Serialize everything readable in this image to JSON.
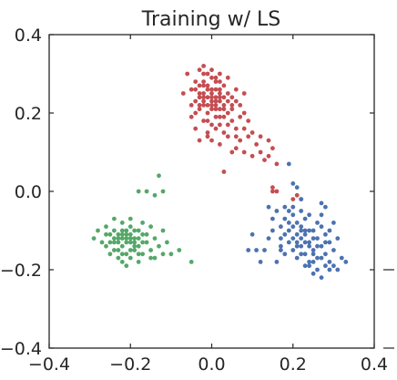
{
  "chart_data": {
    "type": "scatter",
    "title": "Training w/ LS",
    "xlabel": "",
    "ylabel": "",
    "xlim": [
      -0.4,
      0.4
    ],
    "ylim": [
      -0.4,
      0.4
    ],
    "xticks": [
      "−0.4",
      "−0.2",
      "0.0",
      "0.2",
      "0.4"
    ],
    "yticks": [
      "0.4",
      "0.2",
      "0.0",
      "−0.2",
      "−0.4"
    ],
    "grid": false,
    "legend": "none",
    "series": [
      {
        "color": "#c44e52",
        "points": [
          [
            -0.03,
            0.31
          ],
          [
            -0.02,
            0.32
          ],
          [
            -0.01,
            0.3
          ],
          [
            0.0,
            0.29
          ],
          [
            -0.04,
            0.28
          ],
          [
            -0.02,
            0.27
          ],
          [
            0.01,
            0.28
          ],
          [
            0.02,
            0.3
          ],
          [
            -0.05,
            0.26
          ],
          [
            -0.03,
            0.25
          ],
          [
            0.0,
            0.26
          ],
          [
            0.02,
            0.25
          ],
          [
            0.03,
            0.27
          ],
          [
            -0.01,
            0.24
          ],
          [
            0.01,
            0.23
          ],
          [
            -0.04,
            0.23
          ],
          [
            -0.02,
            0.22
          ],
          [
            0.0,
            0.22
          ],
          [
            0.03,
            0.22
          ],
          [
            0.05,
            0.24
          ],
          [
            0.06,
            0.26
          ],
          [
            -0.03,
            0.21
          ],
          [
            -0.01,
            0.2
          ],
          [
            0.01,
            0.21
          ],
          [
            0.04,
            0.2
          ],
          [
            -0.05,
            0.19
          ],
          [
            -0.02,
            0.18
          ],
          [
            0.0,
            0.17
          ],
          [
            0.02,
            0.19
          ],
          [
            0.05,
            0.18
          ],
          [
            0.07,
            0.22
          ],
          [
            0.08,
            0.2
          ],
          [
            -0.04,
            0.16
          ],
          [
            -0.01,
            0.15
          ],
          [
            0.01,
            0.16
          ],
          [
            0.03,
            0.15
          ],
          [
            0.06,
            0.16
          ],
          [
            0.09,
            0.18
          ],
          [
            -0.03,
            0.13
          ],
          [
            0.0,
            0.13
          ],
          [
            0.02,
            0.12
          ],
          [
            0.04,
            0.14
          ],
          [
            0.07,
            0.13
          ],
          [
            0.1,
            0.15
          ],
          [
            0.11,
            0.12
          ],
          [
            -0.02,
            0.24
          ],
          [
            0.0,
            0.25
          ],
          [
            -0.01,
            0.27
          ],
          [
            0.02,
            0.24
          ],
          [
            0.04,
            0.23
          ],
          [
            -0.03,
            0.24
          ],
          [
            0.01,
            0.26
          ],
          [
            -0.02,
            0.23
          ],
          [
            0.0,
            0.23
          ],
          [
            0.01,
            0.24
          ],
          [
            0.03,
            0.24
          ],
          [
            -0.01,
            0.22
          ],
          [
            0.02,
            0.21
          ],
          [
            0.05,
            0.21
          ],
          [
            -0.04,
            0.2
          ],
          [
            0.12,
            0.1
          ],
          [
            0.14,
            0.13
          ],
          [
            0.15,
            0.11
          ],
          [
            0.13,
            0.08
          ],
          [
            0.06,
            0.11
          ],
          [
            0.08,
            0.1
          ],
          [
            0.16,
            0.07
          ],
          [
            0.03,
            0.05
          ],
          [
            0.05,
            0.1
          ],
          [
            0.1,
            0.09
          ],
          [
            0.15,
            0.01
          ],
          [
            0.15,
            0.0
          ],
          [
            0.16,
            0.0
          ],
          [
            0.21,
            -0.01
          ],
          [
            0.22,
            -0.02
          ],
          [
            0.2,
            -0.02
          ],
          [
            -0.06,
            0.3
          ],
          [
            -0.07,
            0.25
          ],
          [
            -0.02,
            0.28
          ],
          [
            0.03,
            0.19
          ],
          [
            0.06,
            0.23
          ],
          [
            0.08,
            0.25
          ],
          [
            -0.01,
            0.18
          ],
          [
            0.04,
            0.17
          ],
          [
            0.07,
            0.19
          ],
          [
            -0.03,
            0.27
          ],
          [
            0.01,
            0.29
          ],
          [
            0.02,
            0.28
          ],
          [
            -0.04,
            0.26
          ],
          [
            0.0,
            0.21
          ],
          [
            0.02,
            0.23
          ],
          [
            -0.02,
            0.25
          ],
          [
            0.01,
            0.22
          ],
          [
            0.03,
            0.21
          ],
          [
            -0.01,
            0.26
          ],
          [
            0.0,
            0.24
          ],
          [
            0.02,
            0.26
          ],
          [
            -0.03,
            0.22
          ],
          [
            0.04,
            0.25
          ],
          [
            0.05,
            0.22
          ],
          [
            0.09,
            0.14
          ],
          [
            0.12,
            0.14
          ],
          [
            0.14,
            0.09
          ],
          [
            0.02,
            0.17
          ],
          [
            -0.02,
            0.3
          ],
          [
            0.0,
            0.31
          ],
          [
            0.04,
            0.29
          ],
          [
            -0.05,
            0.22
          ],
          [
            0.06,
            0.14
          ],
          [
            0.08,
            0.16
          ],
          [
            -0.01,
            0.14
          ],
          [
            0.01,
            0.19
          ]
        ]
      },
      {
        "color": "#4c72b0",
        "points": [
          [
            0.19,
            -0.05
          ],
          [
            0.2,
            -0.06
          ],
          [
            0.22,
            -0.05
          ],
          [
            0.24,
            -0.06
          ],
          [
            0.18,
            -0.07
          ],
          [
            0.21,
            -0.08
          ],
          [
            0.23,
            -0.07
          ],
          [
            0.26,
            -0.08
          ],
          [
            0.17,
            -0.09
          ],
          [
            0.19,
            -0.1
          ],
          [
            0.22,
            -0.09
          ],
          [
            0.25,
            -0.1
          ],
          [
            0.27,
            -0.09
          ],
          [
            0.18,
            -0.11
          ],
          [
            0.2,
            -0.12
          ],
          [
            0.23,
            -0.11
          ],
          [
            0.26,
            -0.12
          ],
          [
            0.28,
            -0.11
          ],
          [
            0.19,
            -0.13
          ],
          [
            0.21,
            -0.14
          ],
          [
            0.24,
            -0.13
          ],
          [
            0.27,
            -0.14
          ],
          [
            0.29,
            -0.13
          ],
          [
            0.2,
            -0.15
          ],
          [
            0.22,
            -0.16
          ],
          [
            0.25,
            -0.15
          ],
          [
            0.28,
            -0.16
          ],
          [
            0.3,
            -0.15
          ],
          [
            0.21,
            -0.17
          ],
          [
            0.24,
            -0.18
          ],
          [
            0.27,
            -0.17
          ],
          [
            0.29,
            -0.18
          ],
          [
            0.23,
            -0.19
          ],
          [
            0.26,
            -0.2
          ],
          [
            0.28,
            -0.19
          ],
          [
            0.25,
            -0.21
          ],
          [
            0.27,
            -0.22
          ],
          [
            0.29,
            -0.2
          ],
          [
            0.15,
            -0.1
          ],
          [
            0.14,
            -0.12
          ],
          [
            0.13,
            -0.15
          ],
          [
            0.11,
            -0.15
          ],
          [
            0.12,
            -0.18
          ],
          [
            0.16,
            -0.18
          ],
          [
            0.17,
            -0.14
          ],
          [
            0.18,
            -0.16
          ],
          [
            0.16,
            -0.05
          ],
          [
            0.15,
            -0.07
          ],
          [
            0.28,
            -0.04
          ],
          [
            0.27,
            -0.06
          ],
          [
            0.3,
            -0.08
          ],
          [
            0.31,
            -0.12
          ],
          [
            0.32,
            -0.17
          ],
          [
            0.33,
            -0.18
          ],
          [
            0.31,
            -0.2
          ],
          [
            0.22,
            -0.12
          ],
          [
            0.23,
            -0.13
          ],
          [
            0.24,
            -0.14
          ],
          [
            0.22,
            -0.14
          ],
          [
            0.23,
            -0.1
          ],
          [
            0.25,
            -0.12
          ],
          [
            0.21,
            -0.11
          ],
          [
            0.24,
            -0.1
          ],
          [
            0.26,
            -0.14
          ],
          [
            0.2,
            -0.09
          ],
          [
            0.22,
            -0.1
          ],
          [
            0.25,
            -0.16
          ],
          [
            0.23,
            -0.16
          ],
          [
            0.21,
            -0.13
          ],
          [
            0.19,
            -0.08
          ],
          [
            0.17,
            -0.12
          ],
          [
            0.29,
            -0.1
          ],
          [
            0.26,
            -0.17
          ],
          [
            0.24,
            -0.19
          ],
          [
            0.28,
            -0.13
          ],
          [
            0.2,
            -0.04
          ],
          [
            0.18,
            -0.04
          ],
          [
            0.09,
            -0.15
          ],
          [
            0.1,
            -0.11
          ],
          [
            0.14,
            -0.04
          ],
          [
            0.19,
            0.07
          ],
          [
            0.2,
            0.02
          ],
          [
            0.21,
            0.01
          ],
          [
            0.22,
            -0.02
          ],
          [
            0.27,
            -0.03
          ],
          [
            0.17,
            -0.15
          ],
          [
            0.3,
            -0.19
          ],
          [
            0.25,
            -0.18
          ]
        ]
      },
      {
        "color": "#55a868",
        "points": [
          [
            -0.13,
            0.04
          ],
          [
            -0.14,
            -0.01
          ],
          [
            -0.12,
            0.0
          ],
          [
            -0.18,
            0.0
          ],
          [
            -0.16,
            0.0
          ],
          [
            -0.24,
            -0.07
          ],
          [
            -0.22,
            -0.08
          ],
          [
            -0.2,
            -0.07
          ],
          [
            -0.26,
            -0.09
          ],
          [
            -0.24,
            -0.1
          ],
          [
            -0.22,
            -0.1
          ],
          [
            -0.2,
            -0.09
          ],
          [
            -0.18,
            -0.1
          ],
          [
            -0.25,
            -0.11
          ],
          [
            -0.23,
            -0.12
          ],
          [
            -0.21,
            -0.11
          ],
          [
            -0.19,
            -0.12
          ],
          [
            -0.17,
            -0.11
          ],
          [
            -0.24,
            -0.13
          ],
          [
            -0.22,
            -0.14
          ],
          [
            -0.2,
            -0.13
          ],
          [
            -0.18,
            -0.14
          ],
          [
            -0.23,
            -0.15
          ],
          [
            -0.21,
            -0.16
          ],
          [
            -0.19,
            -0.15
          ],
          [
            -0.17,
            -0.16
          ],
          [
            -0.2,
            -0.17
          ],
          [
            -0.18,
            -0.18
          ],
          [
            -0.22,
            -0.18
          ],
          [
            -0.28,
            -0.1
          ],
          [
            -0.29,
            -0.12
          ],
          [
            -0.27,
            -0.13
          ],
          [
            -0.26,
            -0.14
          ],
          [
            -0.25,
            -0.16
          ],
          [
            -0.23,
            -0.17
          ],
          [
            -0.21,
            -0.19
          ],
          [
            -0.16,
            -0.13
          ],
          [
            -0.15,
            -0.15
          ],
          [
            -0.14,
            -0.17
          ],
          [
            -0.13,
            -0.14
          ],
          [
            -0.12,
            -0.1
          ],
          [
            -0.11,
            -0.13
          ],
          [
            -0.1,
            -0.16
          ],
          [
            -0.08,
            -0.15
          ],
          [
            -0.05,
            -0.18
          ],
          [
            -0.15,
            -0.09
          ],
          [
            -0.17,
            -0.08
          ],
          [
            -0.21,
            -0.12
          ],
          [
            -0.22,
            -0.11
          ],
          [
            -0.2,
            -0.11
          ],
          [
            -0.19,
            -0.1
          ],
          [
            -0.21,
            -0.13
          ],
          [
            -0.2,
            -0.15
          ],
          [
            -0.22,
            -0.12
          ],
          [
            -0.23,
            -0.13
          ],
          [
            -0.19,
            -0.13
          ],
          [
            -0.24,
            -0.12
          ],
          [
            -0.21,
            -0.1
          ],
          [
            -0.18,
            -0.12
          ],
          [
            -0.2,
            -0.12
          ],
          [
            -0.23,
            -0.11
          ],
          [
            -0.19,
            -0.14
          ],
          [
            -0.17,
            -0.13
          ],
          [
            -0.16,
            -0.11
          ],
          [
            -0.25,
            -0.13
          ],
          [
            -0.26,
            -0.11
          ],
          [
            -0.22,
            -0.16
          ],
          [
            -0.18,
            -0.16
          ],
          [
            -0.14,
            -0.12
          ],
          [
            -0.12,
            -0.16
          ],
          [
            -0.24,
            -0.15
          ],
          [
            -0.15,
            -0.17
          ]
        ]
      }
    ]
  }
}
